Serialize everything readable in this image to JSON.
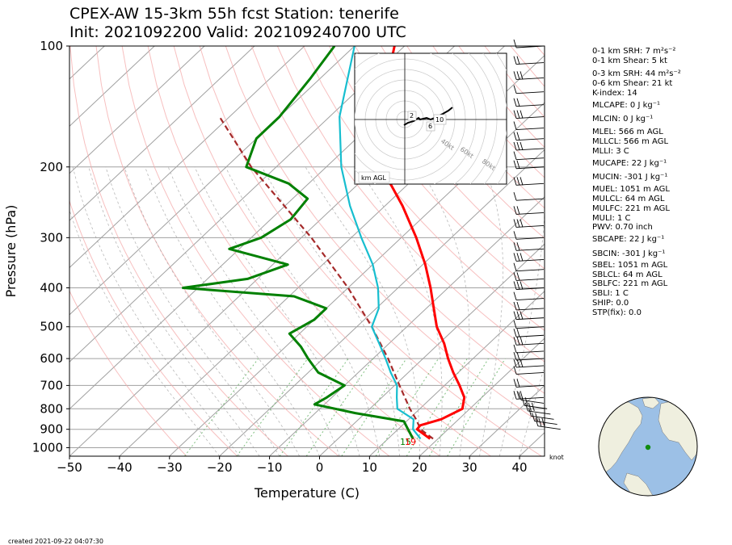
{
  "title_line1": "CPEX-AW 15-3km  55h fcst  Station: tenerife",
  "title_line2": "Init: 2021092200  Valid: 202109240700 UTC",
  "footer": "created 2021-09-22 04:07:30",
  "wind_unit": "knot",
  "surface_labels": {
    "dewpoint": "15",
    "temperature": "19"
  },
  "indices": [
    {
      "key": "0-1 km SRH",
      "value": "7",
      "unit": "m2s-2"
    },
    {
      "key": "0-1 km Shear",
      "value": "5",
      "unit": "kt"
    },
    {
      "key": "0-3 km SRH",
      "value": "44",
      "unit": "m2s-2"
    },
    {
      "key": "0-6 km Shear",
      "value": "21",
      "unit": "kt"
    },
    {
      "key": "K-index",
      "value": "14",
      "unit": ""
    },
    {
      "key": "MLCAPE",
      "value": "0",
      "unit": "J kg-1"
    },
    {
      "key": "MLCIN",
      "value": "0",
      "unit": "J kg-1"
    },
    {
      "key": "MLEL",
      "value": "566",
      "unit": "m AGL"
    },
    {
      "key": "MLLCL",
      "value": "566",
      "unit": "m AGL"
    },
    {
      "key": "MLLI",
      "value": "3",
      "unit": "C"
    },
    {
      "key": "MUCAPE",
      "value": "22",
      "unit": "J kg-1"
    },
    {
      "key": "MUCIN",
      "value": "-301",
      "unit": "J kg-1"
    },
    {
      "key": "MUEL",
      "value": "1051",
      "unit": "m AGL"
    },
    {
      "key": "MULCL",
      "value": "64",
      "unit": "m AGL"
    },
    {
      "key": "MULFC",
      "value": "221",
      "unit": "m AGL"
    },
    {
      "key": "MULI",
      "value": "1",
      "unit": "C"
    },
    {
      "key": "PWV",
      "value": "0.70",
      "unit": "inch"
    },
    {
      "key": "SBCAPE",
      "value": "22",
      "unit": "J kg-1"
    },
    {
      "key": "SBCIN",
      "value": "-301",
      "unit": "J kg-1"
    },
    {
      "key": "SBEL",
      "value": "1051",
      "unit": "m AGL"
    },
    {
      "key": "SBLCL",
      "value": "64",
      "unit": "m AGL"
    },
    {
      "key": "SBLFC",
      "value": "221",
      "unit": "m AGL"
    },
    {
      "key": "SBLI",
      "value": "1",
      "unit": "C"
    },
    {
      "key": "SHIP",
      "value": "0.0",
      "unit": ""
    },
    {
      "key": "STP(fix)",
      "value": "0.0",
      "unit": ""
    }
  ],
  "hodograph": {
    "label": "km AGL",
    "ring_labels": [
      "40kt",
      "60kt",
      "80kt"
    ],
    "height_labels": [
      "2",
      "6",
      "10"
    ]
  },
  "colors": {
    "temperature": "#ff0000",
    "dewpoint": "#008000",
    "wetbulb": "#17becf",
    "parcel": "#a52a2a",
    "dry_adiabat": "#f4a9a9",
    "moist_adiabat": "#9a9a9a",
    "mixing_ratio": "#7fbf7f",
    "isotherm": "#a0a0a0",
    "globe_ocean": "#9cc0e6",
    "globe_land": "#efefdf"
  },
  "chart_data": {
    "type": "skew-t",
    "xlabel": "Temperature (C)",
    "ylabel": "Pressure (hPa)",
    "xlim": [
      -50,
      45
    ],
    "ylim": [
      1050,
      100
    ],
    "xticks": [
      -50,
      -40,
      -30,
      -20,
      -10,
      0,
      10,
      20,
      30,
      40
    ],
    "yticks": [
      1000,
      900,
      800,
      700,
      600,
      500,
      400,
      300,
      200,
      100
    ],
    "temperature_profile": [
      {
        "p": 950,
        "t": 18.4
      },
      {
        "p": 900,
        "t": 13.8
      },
      {
        "p": 880,
        "t": 13.6
      },
      {
        "p": 850,
        "t": 16.5
      },
      {
        "p": 800,
        "t": 18.5
      },
      {
        "p": 750,
        "t": 16.5
      },
      {
        "p": 700,
        "t": 13.0
      },
      {
        "p": 650,
        "t": 9.0
      },
      {
        "p": 600,
        "t": 5.0
      },
      {
        "p": 550,
        "t": 1.0
      },
      {
        "p": 500,
        "t": -4.0
      },
      {
        "p": 450,
        "t": -8.5
      },
      {
        "p": 400,
        "t": -13.5
      },
      {
        "p": 350,
        "t": -19.5
      },
      {
        "p": 300,
        "t": -27.0
      },
      {
        "p": 250,
        "t": -36.5
      },
      {
        "p": 200,
        "t": -49.0
      },
      {
        "p": 150,
        "t": -60.0
      },
      {
        "p": 100,
        "t": -72.0
      }
    ],
    "wetbulb_profile": [
      {
        "p": 950,
        "t": 16.5
      },
      {
        "p": 900,
        "t": 13.0
      },
      {
        "p": 850,
        "t": 11.0
      },
      {
        "p": 800,
        "t": 5.5
      },
      {
        "p": 750,
        "t": 3.0
      },
      {
        "p": 700,
        "t": 0.5
      },
      {
        "p": 650,
        "t": -3.5
      },
      {
        "p": 600,
        "t": -7.5
      },
      {
        "p": 550,
        "t": -12.0
      },
      {
        "p": 500,
        "t": -17.0
      },
      {
        "p": 450,
        "t": -19.5
      },
      {
        "p": 400,
        "t": -24.0
      },
      {
        "p": 350,
        "t": -30.0
      },
      {
        "p": 300,
        "t": -38.0
      },
      {
        "p": 250,
        "t": -47.0
      },
      {
        "p": 200,
        "t": -57.0
      },
      {
        "p": 150,
        "t": -68.0
      },
      {
        "p": 100,
        "t": -80.0
      }
    ],
    "dewpoint_profile": [
      {
        "p": 950,
        "t": 15.0
      },
      {
        "p": 900,
        "t": 12.0
      },
      {
        "p": 860,
        "t": 9.5
      },
      {
        "p": 820,
        "t": -2.0
      },
      {
        "p": 780,
        "t": -12.0
      },
      {
        "p": 750,
        "t": -11.0
      },
      {
        "p": 700,
        "t": -10.0
      },
      {
        "p": 650,
        "t": -18.0
      },
      {
        "p": 600,
        "t": -23.0
      },
      {
        "p": 560,
        "t": -27.0
      },
      {
        "p": 520,
        "t": -32.0
      },
      {
        "p": 480,
        "t": -30.0
      },
      {
        "p": 450,
        "t": -30.0
      },
      {
        "p": 420,
        "t": -39.0
      },
      {
        "p": 400,
        "t": -63.0
      },
      {
        "p": 380,
        "t": -52.0
      },
      {
        "p": 350,
        "t": -47.0
      },
      {
        "p": 320,
        "t": -62.0
      },
      {
        "p": 300,
        "t": -58.0
      },
      {
        "p": 270,
        "t": -56.0
      },
      {
        "p": 240,
        "t": -57.0
      },
      {
        "p": 220,
        "t": -64.0
      },
      {
        "p": 200,
        "t": -76.0
      },
      {
        "p": 170,
        "t": -80.0
      },
      {
        "p": 150,
        "t": -80.0
      },
      {
        "p": 120,
        "t": -82.0
      },
      {
        "p": 100,
        "t": -84.0
      }
    ],
    "parcel_profile": [
      {
        "p": 950,
        "t": 19.0
      },
      {
        "p": 900,
        "t": 14.5
      },
      {
        "p": 850,
        "t": 11.5
      },
      {
        "p": 800,
        "t": 8.0
      },
      {
        "p": 700,
        "t": 1.0
      },
      {
        "p": 600,
        "t": -7.0
      },
      {
        "p": 500,
        "t": -17.0
      },
      {
        "p": 400,
        "t": -30.0
      },
      {
        "p": 300,
        "t": -48.0
      },
      {
        "p": 200,
        "t": -75.0
      },
      {
        "p": 150,
        "t": -92.0
      }
    ],
    "wind_barb_pressures": [
      100,
      110,
      120,
      130,
      140,
      150,
      160,
      170,
      180,
      190,
      200,
      220,
      240,
      260,
      280,
      300,
      320,
      340,
      360,
      380,
      400,
      425,
      450,
      475,
      500,
      525,
      550,
      575,
      600,
      625,
      650,
      700,
      750,
      775,
      800,
      825,
      850,
      875,
      900
    ]
  }
}
